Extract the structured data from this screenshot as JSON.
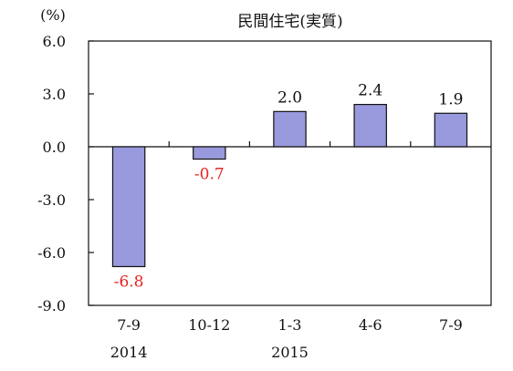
{
  "chart_data": {
    "type": "bar",
    "title": "民間住宅(実質)",
    "unit_label": "(%)",
    "categories": [
      "7-9",
      "10-12",
      "1-3",
      "4-6",
      "7-9"
    ],
    "year_labels": [
      {
        "index": 0,
        "label": "2014"
      },
      {
        "index": 2,
        "label": "2015"
      }
    ],
    "values": [
      -6.8,
      -0.7,
      2.0,
      2.4,
      1.9
    ],
    "data_labels": [
      "-6.8",
      "-0.7",
      "2.0",
      "2.4",
      "1.9"
    ],
    "ylim": [
      -9.0,
      6.0
    ],
    "yticks": [
      "6.0",
      "3.0",
      "0.0",
      "-3.0",
      "-6.0",
      "-9.0"
    ],
    "ytick_values": [
      6,
      3,
      0,
      -3,
      -6,
      -9
    ],
    "grid": false,
    "bar_color": "#9999dd",
    "negative_label_color": "#e8231f",
    "positive_label_color": "#111111"
  }
}
